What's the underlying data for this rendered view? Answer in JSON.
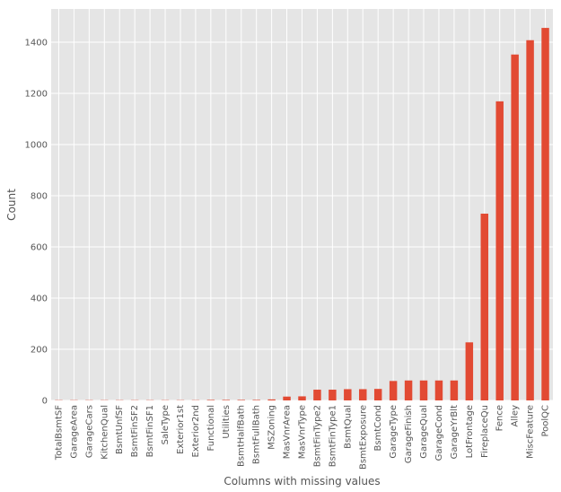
{
  "chart_data": {
    "type": "bar",
    "title": "",
    "xlabel": "Columns with missing values",
    "ylabel": "Count",
    "ylim": [
      0,
      1530
    ],
    "yticks": [
      0,
      200,
      400,
      600,
      800,
      1000,
      1200,
      1400
    ],
    "grid": true,
    "legend": "none",
    "categories": [
      "TotalBsmtSF",
      "GarageArea",
      "GarageCars",
      "KitchenQual",
      "BsmtUnfSF",
      "BsmtFinSF2",
      "BsmtFinSF1",
      "SaleType",
      "Exterior1st",
      "Exterior2nd",
      "Functional",
      "Utilities",
      "BsmtHalfBath",
      "BsmtFullBath",
      "MSZoning",
      "MasVnrArea",
      "MasVnrType",
      "BsmtFinType2",
      "BsmtFinType1",
      "BsmtQual",
      "BsmtExposure",
      "BsmtCond",
      "GarageType",
      "GarageFinish",
      "GarageQual",
      "GarageCond",
      "GarageYrBlt",
      "LotFrontage",
      "FireplaceQu",
      "Fence",
      "Alley",
      "MiscFeature",
      "PoolQC"
    ],
    "values": [
      1,
      1,
      1,
      1,
      1,
      1,
      1,
      1,
      1,
      1,
      2,
      2,
      2,
      2,
      4,
      15,
      16,
      42,
      42,
      44,
      44,
      45,
      76,
      78,
      78,
      78,
      78,
      227,
      730,
      1169,
      1352,
      1408,
      1456
    ]
  },
  "colors": {
    "bar": "#E24A33",
    "background": "#E5E5E5",
    "grid": "#FFFFFF",
    "text": "#555555"
  }
}
